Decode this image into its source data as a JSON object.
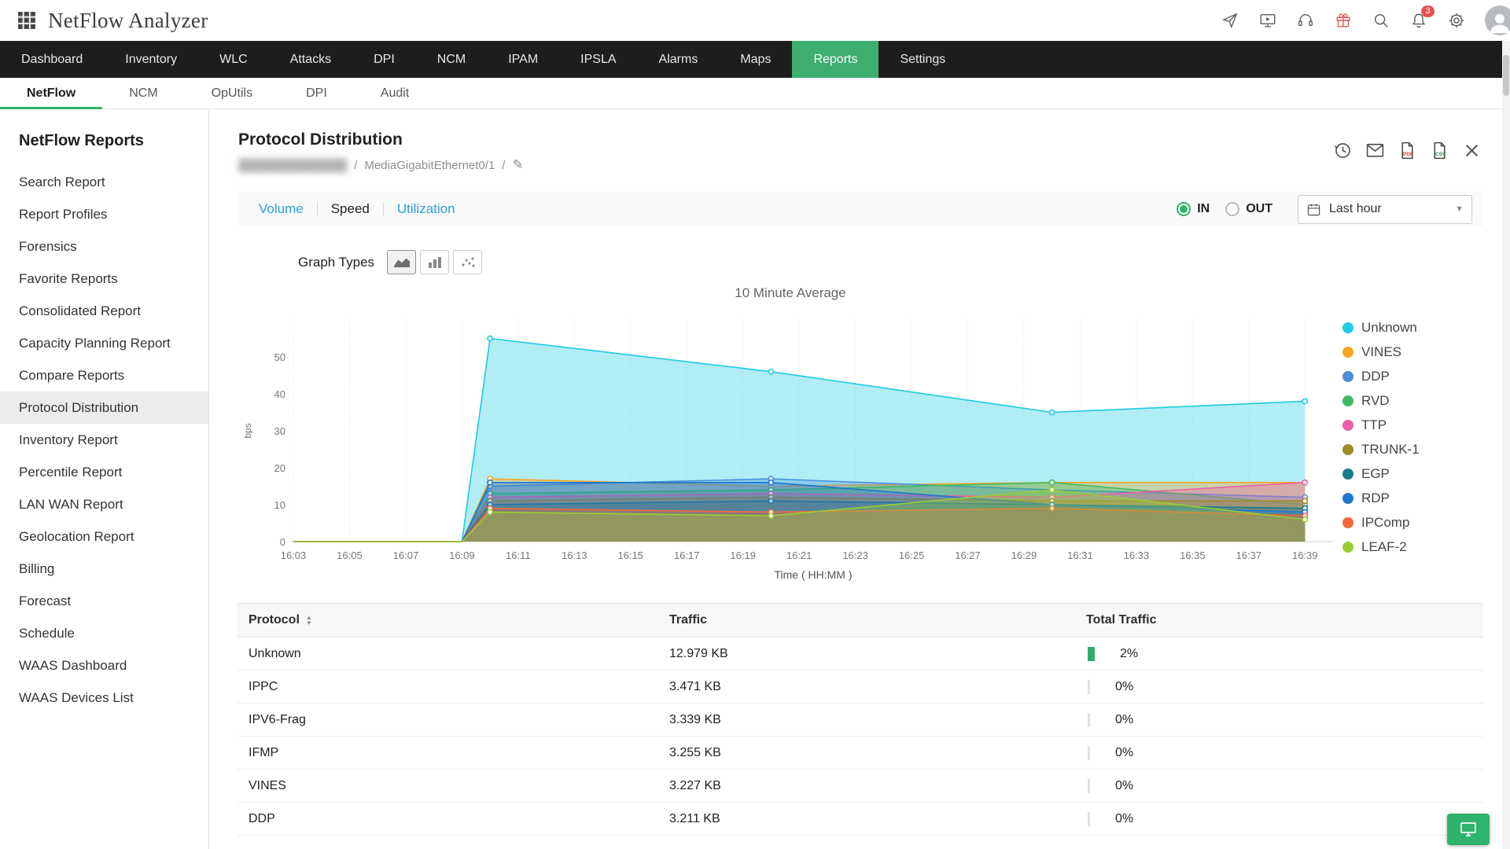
{
  "topbar": {
    "app_title": "NetFlow Analyzer",
    "notification_count": "3"
  },
  "nav": {
    "items": [
      "Dashboard",
      "Inventory",
      "WLC",
      "Attacks",
      "DPI",
      "NCM",
      "IPAM",
      "IPSLA",
      "Alarms",
      "Maps",
      "Reports",
      "Settings"
    ],
    "active": "Reports"
  },
  "subnav": {
    "items": [
      "NetFlow",
      "NCM",
      "OpUtils",
      "DPI",
      "Audit"
    ],
    "active": "NetFlow"
  },
  "sidebar": {
    "title": "NetFlow Reports",
    "items": [
      "Search Report",
      "Report Profiles",
      "Forensics",
      "Favorite Reports",
      "Consolidated Report",
      "Capacity Planning Report",
      "Compare Reports",
      "Protocol Distribution",
      "Inventory Report",
      "Percentile Report",
      "LAN WAN Report",
      "Geolocation Report",
      "Billing",
      "Forecast",
      "Schedule",
      "WAAS Dashboard",
      "WAAS Devices List"
    ],
    "active": "Protocol Distribution"
  },
  "report": {
    "title": "Protocol Distribution",
    "breadcrumb": {
      "device_masked": "█████████████",
      "separator": "/",
      "interface": "MediaGigabitEthernet0/1"
    },
    "tabs": [
      {
        "label": "Volume",
        "type": "link"
      },
      {
        "label": "Speed",
        "type": "current"
      },
      {
        "label": "Utilization",
        "type": "link"
      }
    ],
    "direction": {
      "in": "IN",
      "out": "OUT",
      "selected": "IN"
    },
    "time_range": "Last hour",
    "graph_types_label": "Graph Types"
  },
  "chart_data": {
    "type": "area",
    "title": "10 Minute Average",
    "xlabel": "Time ( HH:MM )",
    "ylabel": "bps",
    "ylim": [
      0,
      60
    ],
    "yticks": [
      0,
      10,
      20,
      30,
      40,
      50
    ],
    "xticks": [
      "16:03",
      "16:05",
      "16:07",
      "16:09",
      "16:11",
      "16:13",
      "16:15",
      "16:17",
      "16:19",
      "16:21",
      "16:23",
      "16:25",
      "16:27",
      "16:29",
      "16:31",
      "16:33",
      "16:35",
      "16:37",
      "16:39"
    ],
    "x_minutes": [
      3,
      9,
      10,
      20,
      30,
      39
    ],
    "grid": "vertical-dashed",
    "legend_position": "right",
    "series": [
      {
        "name": "Unknown",
        "color": "#1ecbe1",
        "values": [
          0,
          0,
          55,
          46,
          35,
          38
        ]
      },
      {
        "name": "VINES",
        "color": "#f5a623",
        "values": [
          0,
          0,
          17,
          15,
          16,
          16
        ]
      },
      {
        "name": "DDP",
        "color": "#4a90d9",
        "values": [
          0,
          0,
          15,
          17,
          14,
          12
        ]
      },
      {
        "name": "RVD",
        "color": "#3dbb61",
        "values": [
          0,
          0,
          13,
          14,
          16,
          10
        ]
      },
      {
        "name": "TTP",
        "color": "#ef5fa7",
        "values": [
          0,
          0,
          12,
          13,
          12,
          16
        ]
      },
      {
        "name": "TRUNK-1",
        "color": "#a08a2a",
        "values": [
          0,
          0,
          11,
          12,
          11,
          11
        ]
      },
      {
        "name": "EGP",
        "color": "#1b7a8c",
        "values": [
          0,
          0,
          10,
          11,
          10,
          9
        ]
      },
      {
        "name": "RDP",
        "color": "#1f77d0",
        "values": [
          0,
          0,
          16,
          16,
          10,
          8
        ]
      },
      {
        "name": "IPComp",
        "color": "#f4683c",
        "values": [
          0,
          0,
          9,
          8,
          9,
          7
        ]
      },
      {
        "name": "LEAF-2",
        "color": "#9acd32",
        "values": [
          0,
          0,
          8,
          7,
          14,
          6
        ]
      }
    ]
  },
  "table": {
    "columns": [
      "Protocol",
      "Traffic",
      "Total Traffic"
    ],
    "rows": [
      {
        "protocol": "Unknown",
        "traffic": "12.979 KB",
        "percent": "2%",
        "percent_value": 2
      },
      {
        "protocol": "IPPC",
        "traffic": "3.471 KB",
        "percent": "0%",
        "percent_value": 0
      },
      {
        "protocol": "IPV6-Frag",
        "traffic": "3.339 KB",
        "percent": "0%",
        "percent_value": 0
      },
      {
        "protocol": "IFMP",
        "traffic": "3.255 KB",
        "percent": "0%",
        "percent_value": 0
      },
      {
        "protocol": "VINES",
        "traffic": "3.227 KB",
        "percent": "0%",
        "percent_value": 0
      },
      {
        "protocol": "DDP",
        "traffic": "3.211 KB",
        "percent": "0%",
        "percent_value": 0
      }
    ],
    "colors": {
      "bar_green": "#2eae66",
      "bar_zero": "#d9e6dd"
    }
  }
}
